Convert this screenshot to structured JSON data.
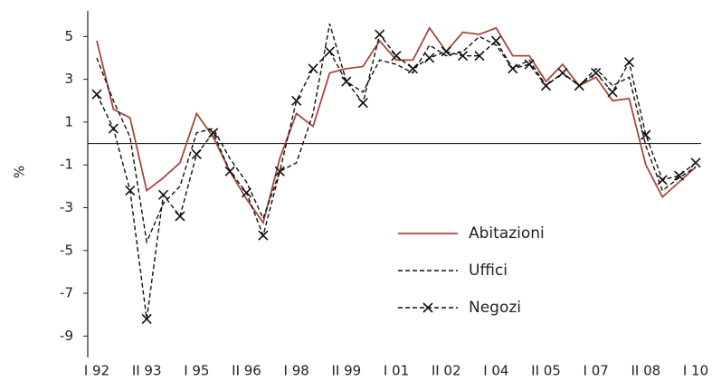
{
  "chart_data": {
    "type": "line",
    "y_label": "%",
    "categories": [
      "I 92",
      null,
      null,
      "II 93",
      null,
      null,
      "I 95",
      null,
      null,
      "II 96",
      null,
      null,
      "I 98",
      null,
      null,
      "II 99",
      null,
      null,
      "I 01",
      null,
      null,
      "II 02",
      null,
      null,
      "I 04",
      null,
      null,
      "II 05",
      null,
      null,
      "I 07",
      null,
      null,
      "II 08",
      null,
      null,
      "I 10"
    ],
    "ylim": [
      -10,
      6.2
    ],
    "yticks": [
      5,
      3,
      1,
      -1,
      -3,
      -5,
      -7,
      -9
    ],
    "zero_line": true,
    "legend": "lower right",
    "series": [
      {
        "name": "Abitazioni",
        "color": "#a4493d",
        "dashed": false,
        "marker": null,
        "values": [
          4.8,
          1.6,
          1.2,
          -2.2,
          -1.6,
          -0.9,
          1.4,
          0.3,
          -1.3,
          -2.6,
          -3.7,
          -0.7,
          1.4,
          0.8,
          3.3,
          3.5,
          3.6,
          4.8,
          3.9,
          3.9,
          5.4,
          4.3,
          5.2,
          5.1,
          5.4,
          4.1,
          4.1,
          2.9,
          3.7,
          2.7,
          3.1,
          2.0,
          2.1,
          -1.0,
          -2.5,
          -1.8,
          -1.1
        ]
      },
      {
        "name": "Uffici",
        "color": "#111111",
        "dashed": true,
        "marker": null,
        "values": [
          4.0,
          2.0,
          0.3,
          -4.6,
          -2.8,
          -2.0,
          0.5,
          0.7,
          -0.7,
          -1.8,
          -3.5,
          -1.3,
          -0.9,
          1.4,
          5.6,
          2.9,
          2.4,
          3.9,
          3.7,
          3.3,
          4.6,
          4.1,
          4.3,
          5.0,
          4.6,
          3.5,
          3.9,
          2.7,
          3.3,
          2.7,
          3.5,
          2.7,
          3.1,
          -0.1,
          -2.2,
          -1.6,
          -1.1
        ]
      },
      {
        "name": "Negozi",
        "color": "#111111",
        "dashed": true,
        "marker": "x",
        "values": [
          2.3,
          0.7,
          -2.2,
          -8.2,
          -2.4,
          -3.4,
          -0.5,
          0.5,
          -1.3,
          -2.3,
          -4.3,
          -1.3,
          2.0,
          3.5,
          4.3,
          2.9,
          1.9,
          5.1,
          4.1,
          3.5,
          4.0,
          4.3,
          4.1,
          4.1,
          4.8,
          3.5,
          3.7,
          2.7,
          3.3,
          2.7,
          3.3,
          2.4,
          3.8,
          0.4,
          -1.7,
          -1.5,
          -0.9
        ]
      }
    ]
  }
}
